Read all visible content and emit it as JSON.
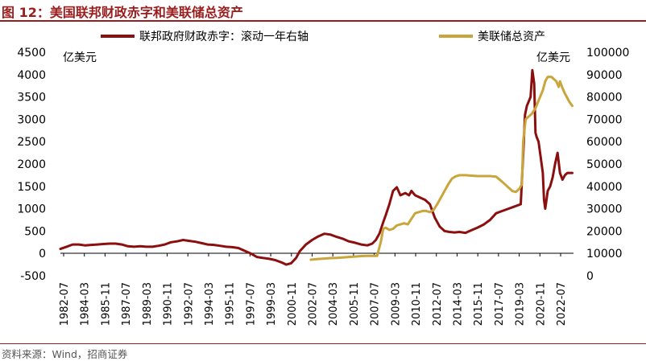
{
  "header": {
    "title": "图 12：美国联邦财政赤字和美联储总资产"
  },
  "footer": {
    "source": "资料来源：Wind，招商证券"
  },
  "chart_data": {
    "type": "line",
    "title": "图 12：美国联邦财政赤字和美联储总资产",
    "legend_position": "top",
    "grid": false,
    "left_axis": {
      "unit": "亿美元",
      "ylim": [
        -500,
        4500
      ],
      "ticks": [
        -500,
        0,
        500,
        1000,
        1500,
        2000,
        2500,
        3000,
        3500,
        4000,
        4500
      ]
    },
    "right_axis": {
      "unit": "亿美元",
      "ylim": [
        0,
        100000
      ],
      "ticks": [
        0,
        10000,
        20000,
        30000,
        40000,
        50000,
        60000,
        70000,
        80000,
        90000,
        100000
      ]
    },
    "x_ticks": [
      "1982-07",
      "1984-03",
      "1985-11",
      "1987-07",
      "1989-03",
      "1990-11",
      "1992-07",
      "1994-03",
      "1995-11",
      "1997-07",
      "1999-03",
      "2000-11",
      "2002-07",
      "2004-03",
      "2005-11",
      "2007-07",
      "2009-03",
      "2010-11",
      "2012-07",
      "2014-03",
      "2015-11",
      "2017-07",
      "2019-03",
      "2020-11",
      "2022-07"
    ],
    "x_range": [
      1982.5,
      2024.3
    ],
    "series": [
      {
        "name": "联邦政府财政赤字：滚动一年右轴",
        "axis": "left",
        "color": "#8b0f0f",
        "x": [
          1982.5,
          1983.0,
          1983.5,
          1984.0,
          1984.5,
          1985.0,
          1985.5,
          1986.0,
          1986.5,
          1987.0,
          1987.5,
          1988.0,
          1988.5,
          1989.0,
          1989.5,
          1990.0,
          1990.5,
          1991.0,
          1991.5,
          1992.0,
          1992.5,
          1993.0,
          1993.5,
          1994.0,
          1994.5,
          1995.0,
          1995.5,
          1996.0,
          1996.5,
          1997.0,
          1997.5,
          1998.0,
          1998.5,
          1999.0,
          1999.5,
          2000.0,
          2000.5,
          2000.9,
          2001.3,
          2001.7,
          2002.0,
          2002.5,
          2003.0,
          2003.5,
          2004.0,
          2004.5,
          2005.0,
          2005.5,
          2006.0,
          2006.5,
          2007.0,
          2007.5,
          2007.9,
          2008.2,
          2008.5,
          2008.8,
          2009.0,
          2009.3,
          2009.6,
          2009.9,
          2010.2,
          2010.6,
          2010.9,
          2011.1,
          2011.4,
          2011.8,
          2012.2,
          2012.6,
          2013.0,
          2013.4,
          2013.8,
          2014.2,
          2014.6,
          2015.0,
          2015.5,
          2016.0,
          2016.5,
          2017.0,
          2017.5,
          2018.0,
          2018.5,
          2019.0,
          2019.5,
          2020.0,
          2020.2,
          2020.35,
          2020.5,
          2020.65,
          2020.8,
          2020.95,
          2021.1,
          2021.2,
          2021.3,
          2021.45,
          2021.6,
          2021.8,
          2021.9,
          2022.0,
          2022.2,
          2022.4,
          2022.6,
          2022.8,
          2023.0,
          2023.2,
          2023.4,
          2023.6,
          2023.8,
          2024.0,
          2024.2
        ],
        "values": [
          100,
          150,
          200,
          200,
          180,
          190,
          200,
          210,
          220,
          220,
          200,
          160,
          150,
          160,
          150,
          150,
          170,
          200,
          250,
          270,
          300,
          280,
          260,
          230,
          200,
          190,
          170,
          150,
          140,
          120,
          60,
          0,
          -80,
          -100,
          -120,
          -150,
          -200,
          -250,
          -220,
          -100,
          50,
          200,
          300,
          380,
          440,
          420,
          370,
          330,
          270,
          240,
          200,
          180,
          220,
          300,
          450,
          700,
          850,
          1100,
          1400,
          1480,
          1300,
          1350,
          1300,
          1400,
          1300,
          1250,
          1200,
          1100,
          800,
          600,
          500,
          480,
          470,
          480,
          460,
          520,
          580,
          650,
          750,
          900,
          950,
          1000,
          1050,
          1100,
          2200,
          3100,
          3300,
          3400,
          3500,
          4100,
          3800,
          2700,
          2600,
          2500,
          2200,
          1800,
          1200,
          1000,
          1400,
          1500,
          1700,
          2000,
          2250,
          1800,
          1650,
          1750,
          1800,
          1800,
          1800
        ]
      },
      {
        "name": "美联储总资产",
        "axis": "right",
        "color": "#c9a63c",
        "x": [
          2002.9,
          2003.5,
          2004.0,
          2004.5,
          2005.0,
          2005.5,
          2006.0,
          2006.5,
          2007.0,
          2007.5,
          2007.7,
          2007.9,
          2008.0,
          2008.3,
          2008.6,
          2008.8,
          2009.0,
          2009.3,
          2009.6,
          2009.9,
          2010.2,
          2010.5,
          2010.8,
          2011.1,
          2011.4,
          2011.7,
          2012.0,
          2012.3,
          2012.6,
          2012.9,
          2013.2,
          2013.5,
          2013.8,
          2014.1,
          2014.4,
          2014.7,
          2015.0,
          2015.5,
          2016.0,
          2016.5,
          2017.0,
          2017.5,
          2018.0,
          2018.5,
          2019.0,
          2019.3,
          2019.6,
          2019.9,
          2020.1,
          2020.2,
          2020.4,
          2020.6,
          2020.9,
          2021.2,
          2021.5,
          2021.8,
          2022.0,
          2022.2,
          2022.5,
          2022.7,
          2022.9,
          2023.1,
          2023.2,
          2023.4,
          2023.6,
          2023.8,
          2024.0,
          2024.2
        ],
        "values": [
          7200,
          7500,
          7700,
          7900,
          8000,
          8200,
          8400,
          8600,
          8800,
          8900,
          8900,
          8900,
          8900,
          8900,
          15000,
          21000,
          21500,
          20500,
          21000,
          22500,
          23000,
          23500,
          23000,
          25500,
          28000,
          28500,
          29000,
          29000,
          28500,
          29500,
          32000,
          35000,
          38000,
          41000,
          43500,
          44500,
          45000,
          45000,
          44800,
          44600,
          44600,
          44600,
          44300,
          42000,
          39500,
          38000,
          37500,
          39000,
          41000,
          60000,
          70000,
          71000,
          72500,
          75000,
          79000,
          83000,
          87000,
          89000,
          89000,
          88000,
          87000,
          84500,
          87000,
          84000,
          81500,
          79500,
          77500,
          76000
        ]
      }
    ]
  }
}
